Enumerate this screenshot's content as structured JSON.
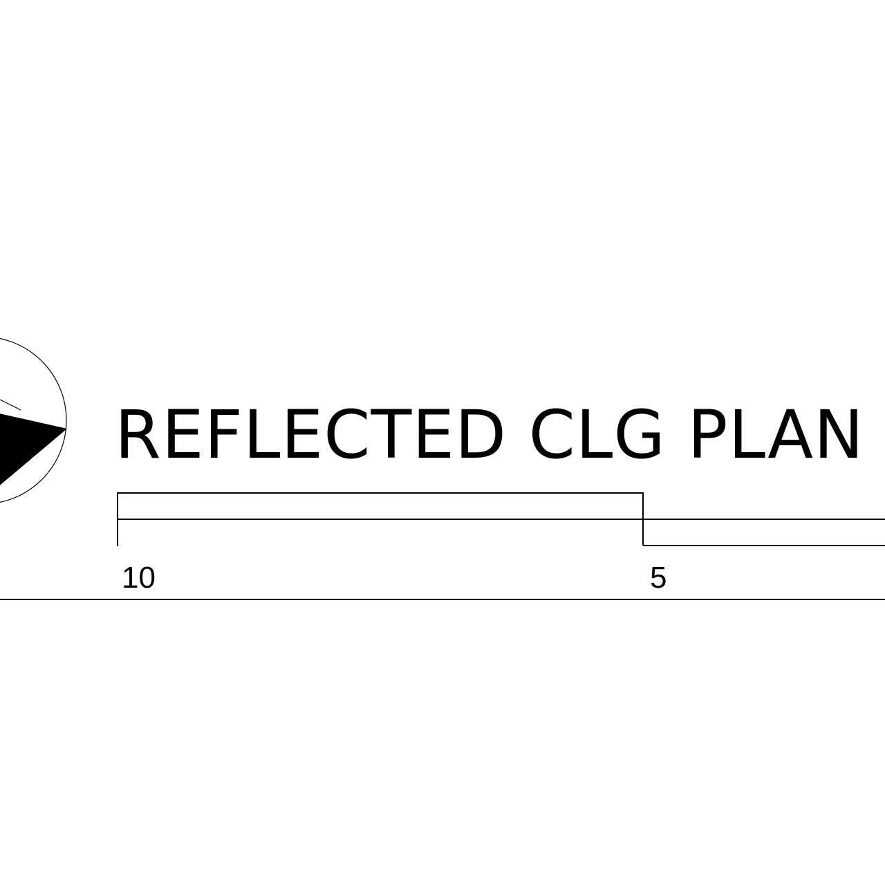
{
  "title": {
    "text": "REFLECTED CLG PLAN"
  },
  "north_arrow": {
    "icon": "north-arrow-icon"
  },
  "scale_bar": {
    "labels": [
      "10",
      "5"
    ]
  },
  "colors": {
    "ink": "#000000",
    "background": "#ffffff"
  }
}
